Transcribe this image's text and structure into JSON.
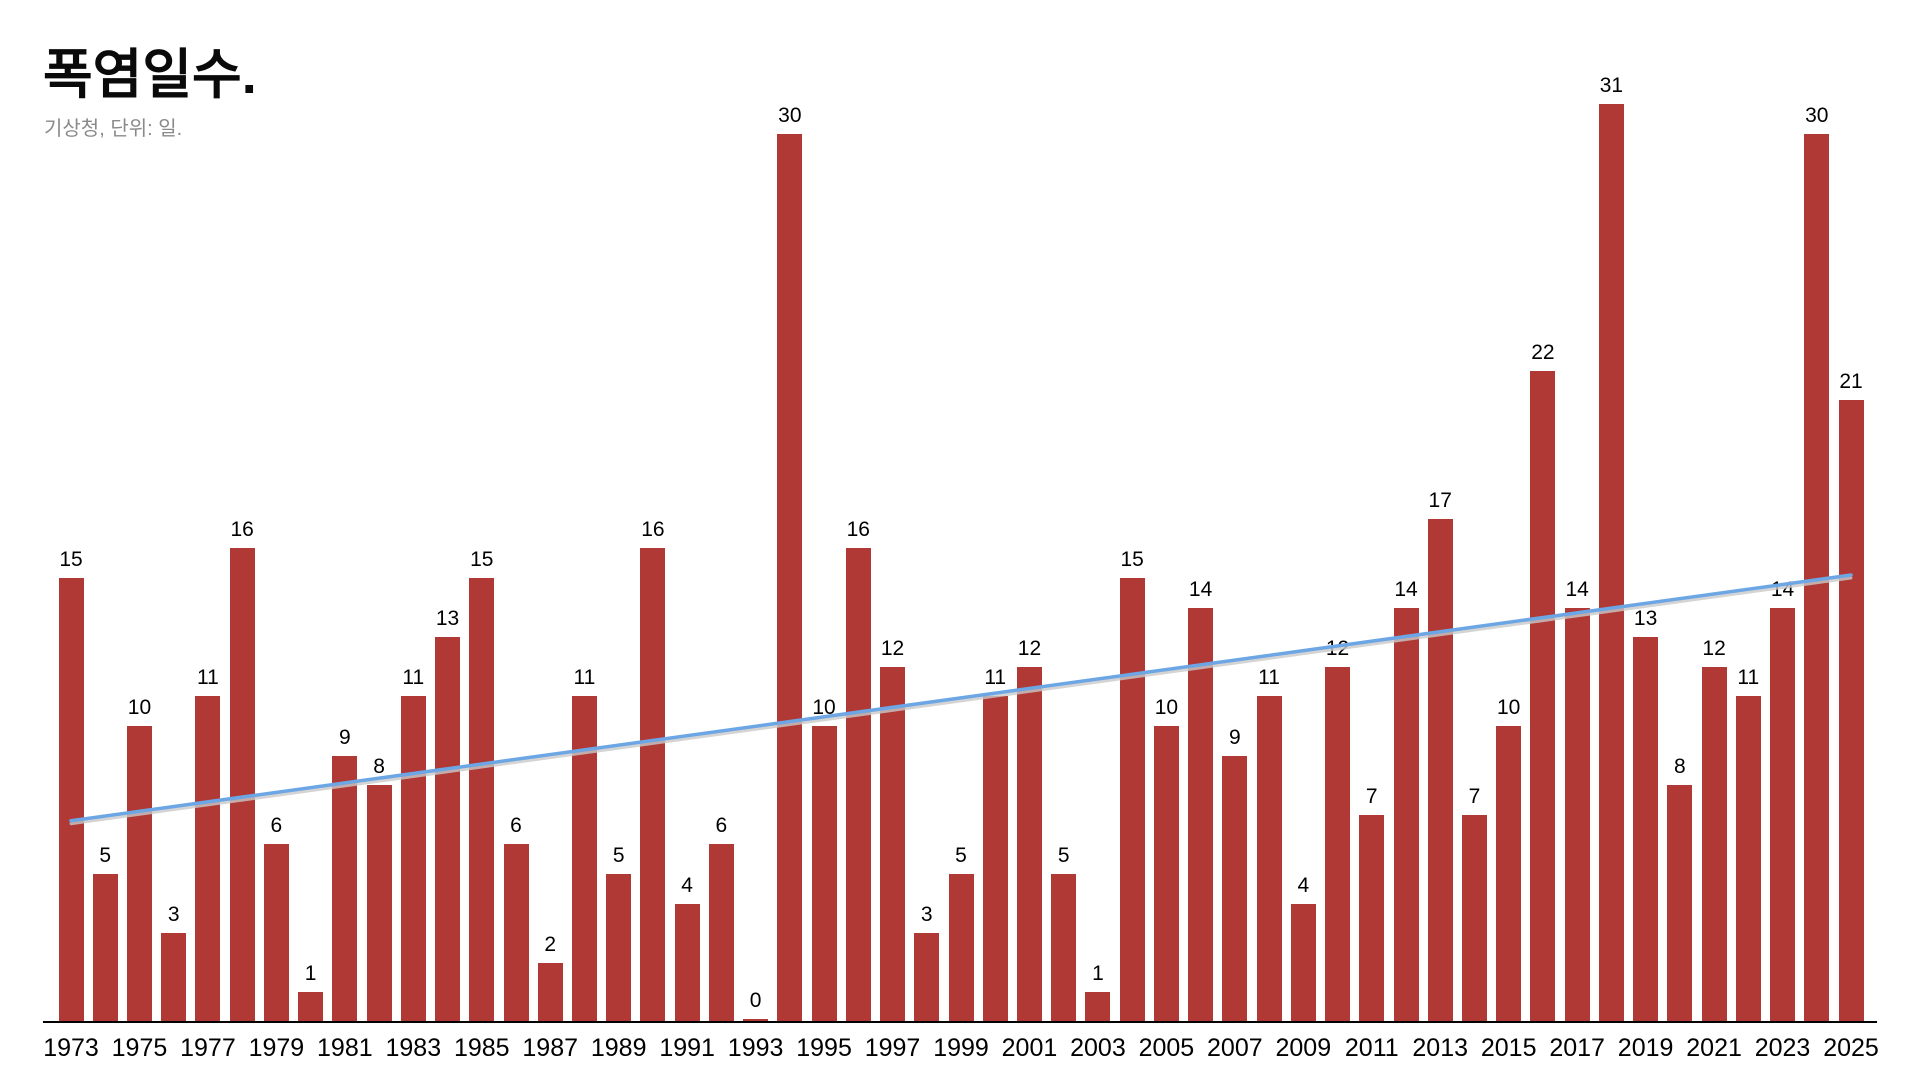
{
  "header": {
    "title": "폭염일수.",
    "subtitle": "기상청, 단위: 일."
  },
  "colors": {
    "bar": "#B03835",
    "trendline": "#6CA6E4",
    "trendline_shadow": "#C9C9C9",
    "axis": "#000000",
    "title_text": "#0A0A0A",
    "subtitle_text": "#8A8A8A",
    "value_label_text": "#000000"
  },
  "chart_data": {
    "type": "bar",
    "title": "폭염일수.",
    "subtitle": "기상청, 단위: 일.",
    "source": "기상청",
    "unit": "일",
    "categories": [
      1973,
      1974,
      1975,
      1976,
      1977,
      1978,
      1979,
      1980,
      1981,
      1982,
      1983,
      1984,
      1985,
      1986,
      1987,
      1988,
      1989,
      1990,
      1991,
      1992,
      1993,
      1994,
      1995,
      1996,
      1997,
      1998,
      1999,
      2000,
      2001,
      2002,
      2003,
      2004,
      2005,
      2006,
      2007,
      2008,
      2009,
      2010,
      2011,
      2012,
      2013,
      2014,
      2015,
      2016,
      2017,
      2018,
      2019,
      2020,
      2021,
      2022,
      2023,
      2024,
      2025
    ],
    "values": [
      15,
      5,
      10,
      3,
      11,
      16,
      6,
      1,
      9,
      8,
      11,
      13,
      15,
      6,
      2,
      11,
      5,
      16,
      4,
      6,
      0,
      30,
      10,
      16,
      12,
      3,
      5,
      11,
      12,
      5,
      1,
      15,
      10,
      14,
      9,
      11,
      4,
      12,
      7,
      14,
      17,
      7,
      10,
      22,
      14,
      31,
      13,
      8,
      12,
      11,
      14,
      30,
      21
    ],
    "data_labels": true,
    "x_tick_labels": [
      "1973",
      "1975",
      "1977",
      "1979",
      "1981",
      "1983",
      "1985",
      "1987",
      "1989",
      "1991",
      "1993",
      "1995",
      "1997",
      "1999",
      "2001",
      "2003",
      "2005",
      "2007",
      "2009",
      "2011",
      "2013",
      "2015",
      "2017",
      "2019",
      "2021",
      "2023",
      "2025"
    ],
    "ylim": [
      0,
      31
    ],
    "grid": false,
    "legend": false,
    "trendline": {
      "start_year": 1973,
      "start_value": 6.8,
      "end_year": 2025,
      "end_value": 15.1
    }
  }
}
